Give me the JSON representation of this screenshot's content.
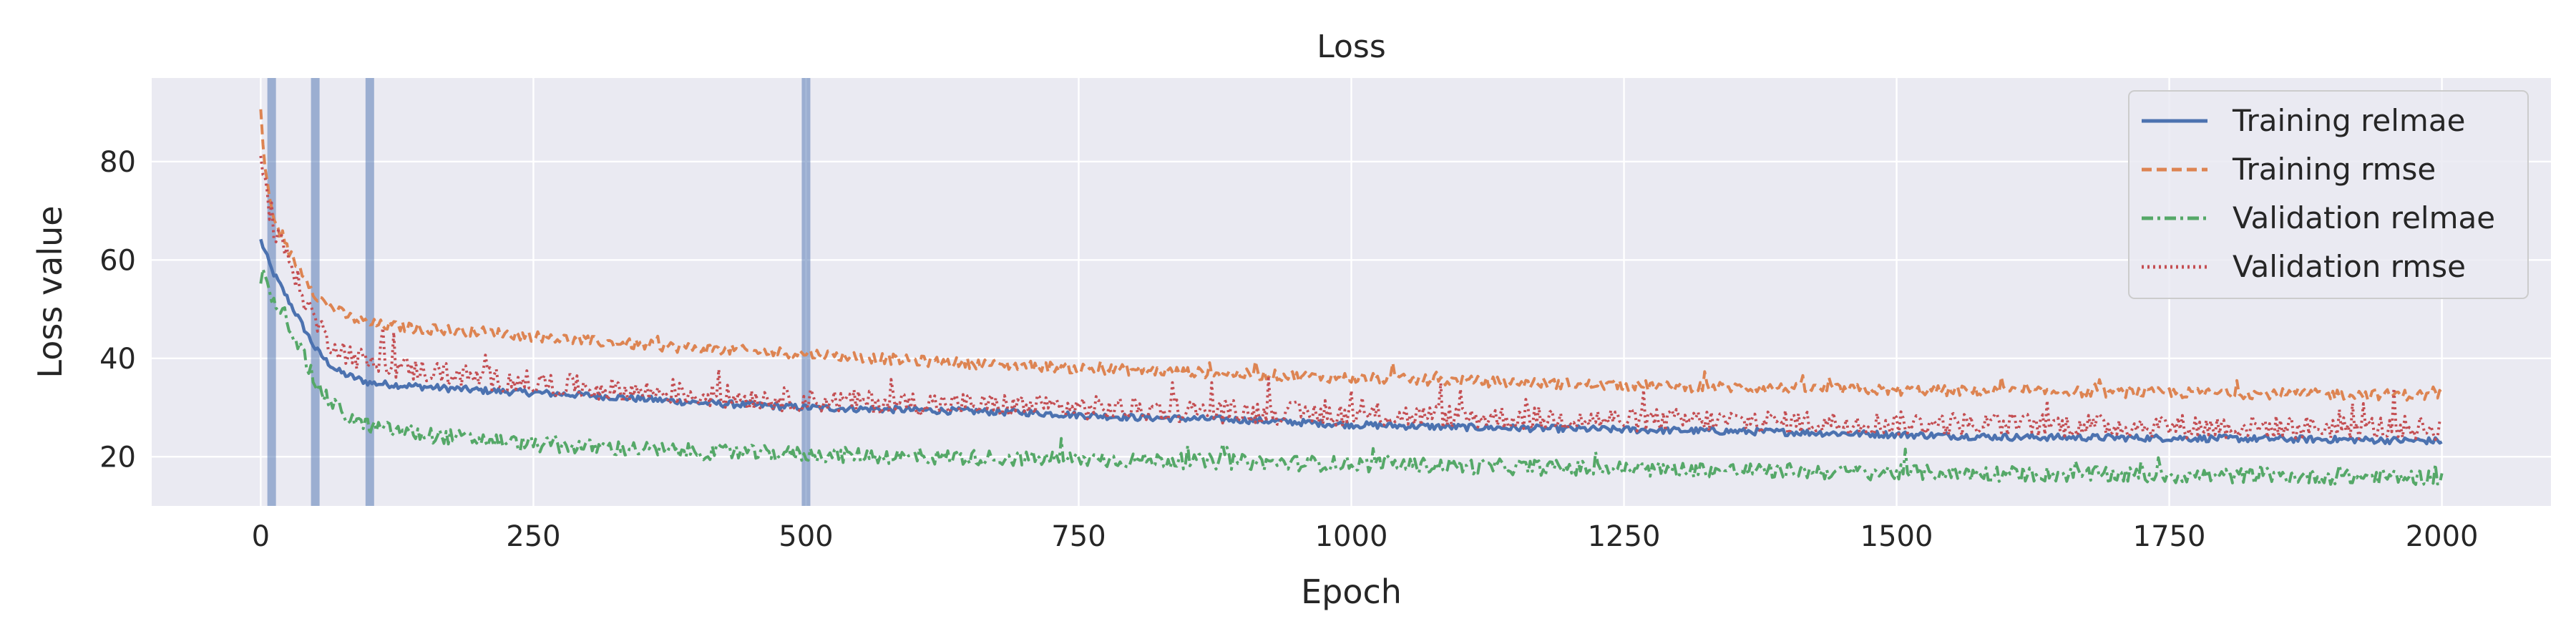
{
  "chart_data": {
    "type": "line",
    "title": "Loss",
    "xlabel": "Epoch",
    "ylabel": "Loss value",
    "xlim": [
      -100,
      2100
    ],
    "ylim": [
      10,
      97
    ],
    "xticks": [
      0,
      250,
      500,
      750,
      1000,
      1250,
      1500,
      1750,
      2000
    ],
    "yticks": [
      20,
      40,
      60,
      80
    ],
    "grid": true,
    "legend_position": "top-right",
    "vertical_markers": [
      10,
      50,
      100,
      500
    ],
    "colors": {
      "background": "#eaeaf2",
      "grid": "#ffffff",
      "marker": "#4c72b0"
    },
    "series": [
      {
        "name": "Training relmae",
        "color": "#4c72b0",
        "style": "solid",
        "noise": 0.7,
        "points": [
          [
            0,
            64
          ],
          [
            5,
            61
          ],
          [
            10,
            58
          ],
          [
            20,
            54
          ],
          [
            30,
            50
          ],
          [
            40,
            46
          ],
          [
            50,
            42
          ],
          [
            60,
            39.5
          ],
          [
            70,
            37.5
          ],
          [
            80,
            36.5
          ],
          [
            100,
            35
          ],
          [
            150,
            34.2
          ],
          [
            200,
            33.5
          ],
          [
            250,
            33
          ],
          [
            300,
            32.5
          ],
          [
            400,
            31
          ],
          [
            500,
            30
          ],
          [
            600,
            29.5
          ],
          [
            700,
            29
          ],
          [
            800,
            28
          ],
          [
            900,
            27.5
          ],
          [
            1000,
            26.5
          ],
          [
            1100,
            26
          ],
          [
            1250,
            25.5
          ],
          [
            1400,
            25
          ],
          [
            1500,
            24.5
          ],
          [
            1600,
            24
          ],
          [
            1750,
            23.8
          ],
          [
            1900,
            23.5
          ],
          [
            2000,
            23.2
          ]
        ]
      },
      {
        "name": "Training rmse",
        "color": "#dd8452",
        "style": "dashed",
        "noise": 1.1,
        "points": [
          [
            0,
            90
          ],
          [
            3,
            80
          ],
          [
            10,
            70
          ],
          [
            20,
            64
          ],
          [
            30,
            60
          ],
          [
            40,
            57
          ],
          [
            50,
            53
          ],
          [
            60,
            51
          ],
          [
            80,
            48.5
          ],
          [
            100,
            47
          ],
          [
            150,
            46
          ],
          [
            200,
            45.5
          ],
          [
            250,
            44.5
          ],
          [
            300,
            43.5
          ],
          [
            400,
            42
          ],
          [
            500,
            41
          ],
          [
            600,
            39.5
          ],
          [
            750,
            38
          ],
          [
            1000,
            36
          ],
          [
            1250,
            34.5
          ],
          [
            1500,
            33.5
          ],
          [
            1750,
            33
          ],
          [
            2000,
            32.5
          ]
        ]
      },
      {
        "name": "Validation relmae",
        "color": "#55a868",
        "style": "dashdot",
        "noise": 1.6,
        "points": [
          [
            0,
            56
          ],
          [
            5,
            58
          ],
          [
            10,
            53
          ],
          [
            20,
            50
          ],
          [
            30,
            45
          ],
          [
            40,
            40
          ],
          [
            50,
            35
          ],
          [
            60,
            32
          ],
          [
            80,
            28
          ],
          [
            100,
            26
          ],
          [
            150,
            24.5
          ],
          [
            200,
            23.5
          ],
          [
            250,
            22.5
          ],
          [
            300,
            22
          ],
          [
            400,
            21
          ],
          [
            500,
            20.5
          ],
          [
            600,
            20
          ],
          [
            750,
            19.5
          ],
          [
            1000,
            18.5
          ],
          [
            1250,
            17.5
          ],
          [
            1500,
            16.8
          ],
          [
            1750,
            16.2
          ],
          [
            2000,
            15.8
          ]
        ]
      },
      {
        "name": "Validation rmse",
        "color": "#c44e52",
        "style": "dotted",
        "noise": 2.4,
        "points": [
          [
            0,
            82
          ],
          [
            5,
            74
          ],
          [
            10,
            66
          ],
          [
            20,
            63
          ],
          [
            30,
            58
          ],
          [
            40,
            52
          ],
          [
            50,
            48
          ],
          [
            60,
            44
          ],
          [
            80,
            41
          ],
          [
            100,
            39
          ],
          [
            150,
            37.5
          ],
          [
            200,
            36
          ],
          [
            250,
            35
          ],
          [
            300,
            34
          ],
          [
            400,
            32.5
          ],
          [
            500,
            31.5
          ],
          [
            750,
            30
          ],
          [
            1000,
            28.5
          ],
          [
            1250,
            27.5
          ],
          [
            1500,
            26.8
          ],
          [
            1750,
            26.2
          ],
          [
            2000,
            25.8
          ]
        ]
      }
    ]
  }
}
